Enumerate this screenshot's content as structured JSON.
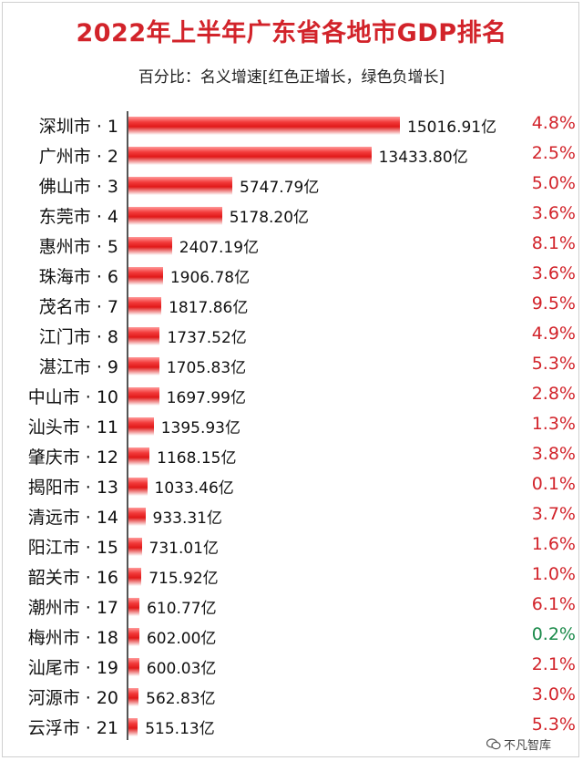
{
  "header": {
    "title": "2022年上半年广东省各地市GDP排名",
    "subtitle": "百分比：名义增速[红色正增长，绿色负增长]"
  },
  "watermark": {
    "text": "不凡智库",
    "icon": "wechat-icon"
  },
  "colors": {
    "positive": "#d2232a",
    "negative": "#1a8a4a",
    "bar": "#e01919"
  },
  "chart_data": {
    "type": "bar",
    "orientation": "horizontal",
    "title": "2022年上半年广东省各地市GDP排名",
    "subtitle": "百分比：名义增速[红色正增长，绿色负增长]",
    "unit": "亿",
    "rows": [
      {
        "label": "深圳市 · 1",
        "value": 15016.91,
        "value_label": "15016.91亿",
        "growth": "4.8%",
        "sign": "positive"
      },
      {
        "label": "广州市 · 2",
        "value": 13433.8,
        "value_label": "13433.80亿",
        "growth": "2.5%",
        "sign": "positive"
      },
      {
        "label": "佛山市 · 3",
        "value": 5747.79,
        "value_label": "5747.79亿",
        "growth": "5.0%",
        "sign": "positive"
      },
      {
        "label": "东莞市 · 4",
        "value": 5178.2,
        "value_label": "5178.20亿",
        "growth": "3.6%",
        "sign": "positive"
      },
      {
        "label": "惠州市 · 5",
        "value": 2407.19,
        "value_label": "2407.19亿",
        "growth": "8.1%",
        "sign": "positive"
      },
      {
        "label": "珠海市 · 6",
        "value": 1906.78,
        "value_label": "1906.78亿",
        "growth": "3.6%",
        "sign": "positive"
      },
      {
        "label": "茂名市 · 7",
        "value": 1817.86,
        "value_label": "1817.86亿",
        "growth": "9.5%",
        "sign": "positive"
      },
      {
        "label": "江门市 · 8",
        "value": 1737.52,
        "value_label": "1737.52亿",
        "growth": "4.9%",
        "sign": "positive"
      },
      {
        "label": "湛江市 · 9",
        "value": 1705.83,
        "value_label": "1705.83亿",
        "growth": "5.3%",
        "sign": "positive"
      },
      {
        "label": "中山市 · 10",
        "value": 1697.99,
        "value_label": "1697.99亿",
        "growth": "2.8%",
        "sign": "positive"
      },
      {
        "label": "汕头市 · 11",
        "value": 1395.93,
        "value_label": "1395.93亿",
        "growth": "1.3%",
        "sign": "positive"
      },
      {
        "label": "肇庆市 · 12",
        "value": 1168.15,
        "value_label": "1168.15亿",
        "growth": "3.8%",
        "sign": "positive"
      },
      {
        "label": "揭阳市 · 13",
        "value": 1033.46,
        "value_label": "1033.46亿",
        "growth": "0.1%",
        "sign": "positive"
      },
      {
        "label": "清远市 · 14",
        "value": 933.31,
        "value_label": "933.31亿",
        "growth": "3.7%",
        "sign": "positive"
      },
      {
        "label": "阳江市 · 15",
        "value": 731.01,
        "value_label": "731.01亿",
        "growth": "1.6%",
        "sign": "positive"
      },
      {
        "label": "韶关市 · 16",
        "value": 715.92,
        "value_label": "715.92亿",
        "growth": "1.0%",
        "sign": "positive"
      },
      {
        "label": "潮州市 · 17",
        "value": 610.77,
        "value_label": "610.77亿",
        "growth": "6.1%",
        "sign": "positive"
      },
      {
        "label": "梅州市 · 18",
        "value": 602.0,
        "value_label": "602.00亿",
        "growth": "0.2%",
        "sign": "negative"
      },
      {
        "label": "汕尾市 · 19",
        "value": 600.03,
        "value_label": "600.03亿",
        "growth": "2.1%",
        "sign": "positive"
      },
      {
        "label": "河源市 · 20",
        "value": 562.83,
        "value_label": "562.83亿",
        "growth": "3.0%",
        "sign": "positive"
      },
      {
        "label": "云浮市 · 21",
        "value": 515.13,
        "value_label": "515.13亿",
        "growth": "5.3%",
        "sign": "positive"
      }
    ]
  }
}
